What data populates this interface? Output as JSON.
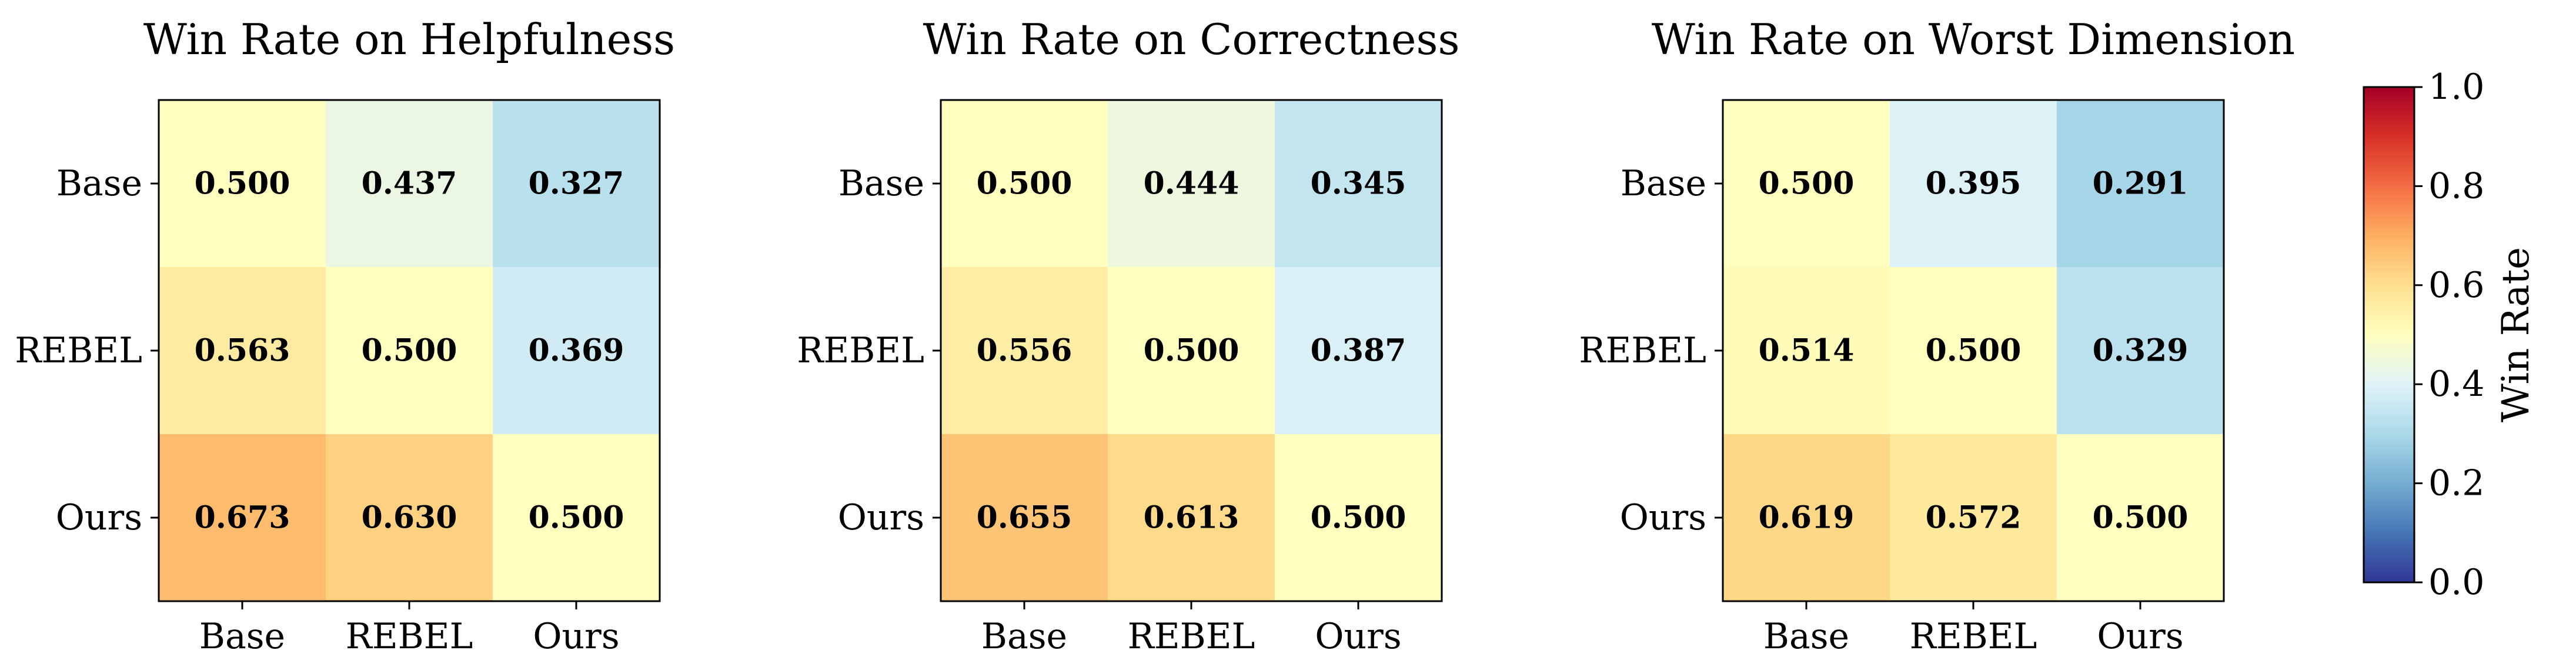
{
  "chart_data": [
    {
      "type": "heatmap",
      "title": "Win Rate on Helpfulness",
      "rows": [
        "Base",
        "REBEL",
        "Ours"
      ],
      "columns": [
        "Base",
        "REBEL",
        "Ours"
      ],
      "values": [
        [
          0.5,
          0.437,
          0.327
        ],
        [
          0.563,
          0.5,
          0.369
        ],
        [
          0.673,
          0.63,
          0.5
        ]
      ],
      "value_labels": [
        [
          "0.500",
          "0.437",
          "0.327"
        ],
        [
          "0.563",
          "0.500",
          "0.369"
        ],
        [
          "0.673",
          "0.630",
          "0.500"
        ]
      ]
    },
    {
      "type": "heatmap",
      "title": "Win Rate on Correctness",
      "rows": [
        "Base",
        "REBEL",
        "Ours"
      ],
      "columns": [
        "Base",
        "REBEL",
        "Ours"
      ],
      "values": [
        [
          0.5,
          0.444,
          0.345
        ],
        [
          0.556,
          0.5,
          0.387
        ],
        [
          0.655,
          0.613,
          0.5
        ]
      ],
      "value_labels": [
        [
          "0.500",
          "0.444",
          "0.345"
        ],
        [
          "0.556",
          "0.500",
          "0.387"
        ],
        [
          "0.655",
          "0.613",
          "0.500"
        ]
      ]
    },
    {
      "type": "heatmap",
      "title": "Win Rate on Worst Dimension",
      "rows": [
        "Base",
        "REBEL",
        "Ours"
      ],
      "columns": [
        "Base",
        "REBEL",
        "Ours"
      ],
      "values": [
        [
          0.5,
          0.395,
          0.291
        ],
        [
          0.514,
          0.5,
          0.329
        ],
        [
          0.619,
          0.572,
          0.5
        ]
      ],
      "value_labels": [
        [
          "0.500",
          "0.395",
          "0.291"
        ],
        [
          "0.514",
          "0.500",
          "0.329"
        ],
        [
          "0.619",
          "0.572",
          "0.500"
        ]
      ]
    }
  ],
  "colorbar": {
    "label": "Win Rate",
    "range": [
      0.0,
      1.0
    ],
    "ticks": [
      0.0,
      0.2,
      0.4,
      0.6,
      0.8,
      1.0
    ],
    "tick_labels": [
      "0.0",
      "0.2",
      "0.4",
      "0.6",
      "0.8",
      "1.0"
    ],
    "colormap": "RdYlBu_r",
    "colormap_stops": [
      "#313695",
      "#4575b4",
      "#74add1",
      "#abd9e9",
      "#e0f3f8",
      "#ffffbf",
      "#fee090",
      "#fdae61",
      "#f46d43",
      "#d73027",
      "#a50026"
    ]
  }
}
